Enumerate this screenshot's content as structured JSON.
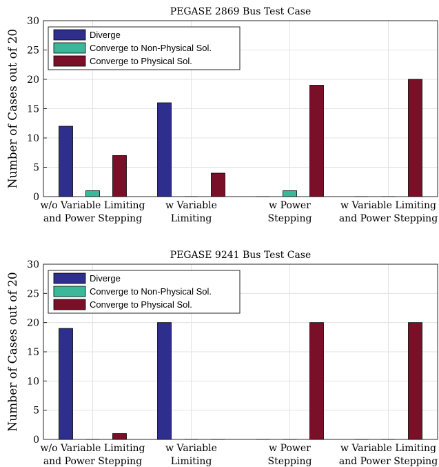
{
  "chart_data": [
    {
      "type": "bar",
      "title": "PEGASE 2869 Bus Test Case",
      "ylabel": "Number of Cases out of 20",
      "ylim": [
        0,
        30
      ],
      "yticks": [
        0,
        5,
        10,
        15,
        20,
        25,
        30
      ],
      "grid": true,
      "legend_position": "top-left",
      "categories": [
        [
          "w/o Variable Limiting",
          "and Power Stepping"
        ],
        [
          "w Variable",
          "Limiting"
        ],
        [
          "w Power",
          "Stepping"
        ],
        [
          "w Variable Limiting",
          "and Power Stepping"
        ]
      ],
      "series": [
        {
          "name": "Diverge",
          "color": "#2e2e8c",
          "values": [
            12,
            16,
            0,
            0
          ]
        },
        {
          "name": "Converge to Non-Physical Sol.",
          "color": "#3bb89a",
          "values": [
            1,
            0,
            1,
            0
          ]
        },
        {
          "name": "Converge to Physical Sol.",
          "color": "#7a1028",
          "values": [
            7,
            4,
            19,
            20
          ]
        }
      ]
    },
    {
      "type": "bar",
      "title": "PEGASE 9241 Bus Test Case",
      "ylabel": "Number of Cases out of 20",
      "ylim": [
        0,
        30
      ],
      "yticks": [
        0,
        5,
        10,
        15,
        20,
        25,
        30
      ],
      "grid": true,
      "legend_position": "top-left",
      "categories": [
        [
          "w/o Variable Limiting",
          "and Power Stepping"
        ],
        [
          "w Variable",
          "Limiting"
        ],
        [
          "w Power",
          "Stepping"
        ],
        [
          "w Variable Limiting",
          "and Power Stepping"
        ]
      ],
      "series": [
        {
          "name": "Diverge",
          "color": "#2e2e8c",
          "values": [
            19,
            20,
            0,
            0
          ]
        },
        {
          "name": "Converge to Non-Physical Sol.",
          "color": "#3bb89a",
          "values": [
            0,
            0,
            0,
            0
          ]
        },
        {
          "name": "Converge to Physical Sol.",
          "color": "#7a1028",
          "values": [
            1,
            0,
            20,
            20
          ]
        }
      ]
    }
  ]
}
